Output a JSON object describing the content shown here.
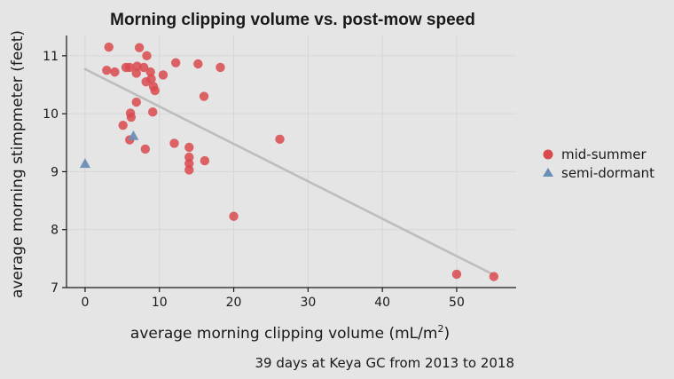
{
  "chart_data": {
    "type": "scatter",
    "title": "Morning clipping volume vs. post-mow speed",
    "xlabel": "average morning clipping volume (mL/m",
    "xlabel_superscript": "2",
    "xlabel_suffix": ")",
    "ylabel": "average morning stimpmeter (feet)",
    "caption": "39 days at Keya GC from 2013 to 2018",
    "xlim": [
      -2.5,
      58
    ],
    "ylim": [
      7.0,
      11.35
    ],
    "x_ticks": [
      0,
      10,
      20,
      30,
      40,
      50
    ],
    "y_ticks": [
      7,
      8,
      9,
      10,
      11
    ],
    "grid": true,
    "legend_position": "right",
    "series": [
      {
        "name": "mid-summer",
        "marker": "circle",
        "color": "#d94a4f",
        "points": [
          [
            3.2,
            11.15
          ],
          [
            7.3,
            11.14
          ],
          [
            8.3,
            11.0
          ],
          [
            12.2,
            10.88
          ],
          [
            15.2,
            10.86
          ],
          [
            18.2,
            10.8
          ],
          [
            5.5,
            10.8
          ],
          [
            6.0,
            10.8
          ],
          [
            7.0,
            10.82
          ],
          [
            7.9,
            10.8
          ],
          [
            2.9,
            10.75
          ],
          [
            4.0,
            10.72
          ],
          [
            6.9,
            10.7
          ],
          [
            8.8,
            10.72
          ],
          [
            10.5,
            10.67
          ],
          [
            8.9,
            10.6
          ],
          [
            8.2,
            10.55
          ],
          [
            9.2,
            10.47
          ],
          [
            9.4,
            10.4
          ],
          [
            16.0,
            10.3
          ],
          [
            6.9,
            10.2
          ],
          [
            9.1,
            10.03
          ],
          [
            6.1,
            10.01
          ],
          [
            6.2,
            9.94
          ],
          [
            5.1,
            9.8
          ],
          [
            6.0,
            9.55
          ],
          [
            26.2,
            9.56
          ],
          [
            12.0,
            9.49
          ],
          [
            14.0,
            9.42
          ],
          [
            8.1,
            9.39
          ],
          [
            14.0,
            9.25
          ],
          [
            14.0,
            9.14
          ],
          [
            16.1,
            9.19
          ],
          [
            14.0,
            9.03
          ],
          [
            20.0,
            8.23
          ],
          [
            50.0,
            7.23
          ],
          [
            55.0,
            7.19
          ]
        ]
      },
      {
        "name": "semi-dormant",
        "marker": "triangle",
        "color": "#6a8fb5",
        "points": [
          [
            0.0,
            9.14
          ],
          [
            6.5,
            9.62
          ]
        ]
      }
    ],
    "trend_line": {
      "type": "linear",
      "color": "#bdbdbd",
      "x": [
        0,
        55
      ],
      "y": [
        10.77,
        7.22
      ]
    }
  }
}
